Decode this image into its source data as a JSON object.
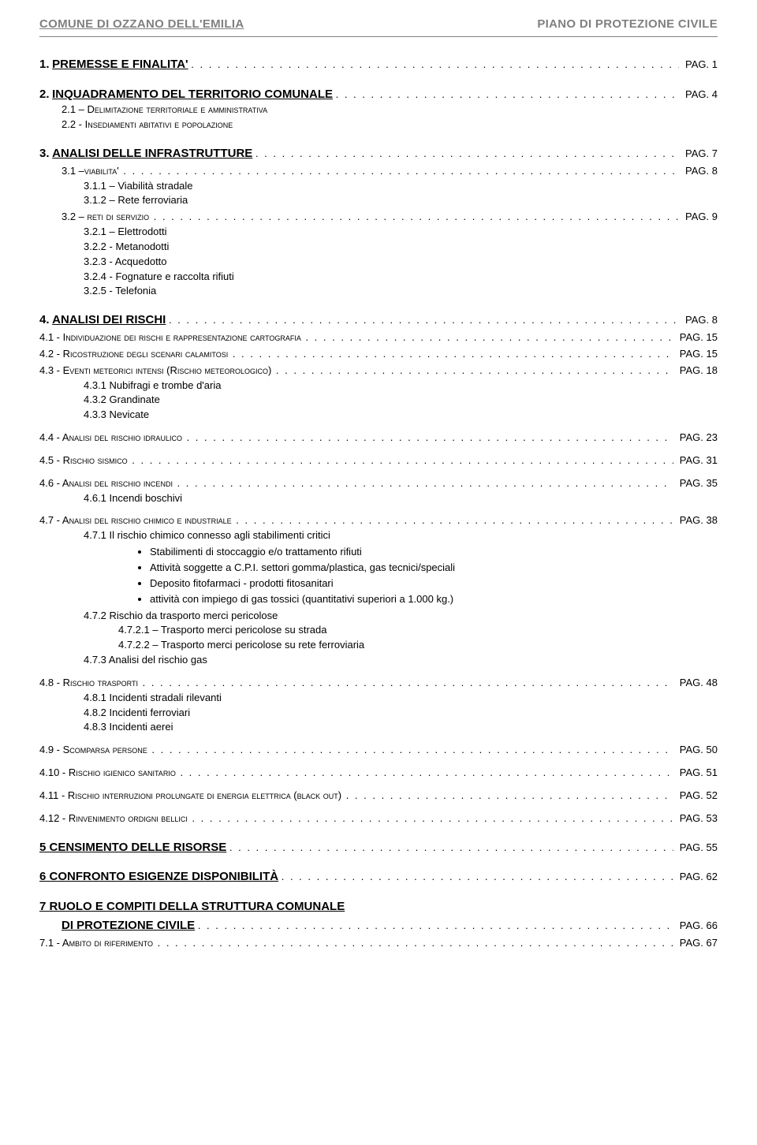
{
  "header": {
    "left": "COMUNE DI OZZANO DELL'EMILIA",
    "right": "PIANO DI PROTEZIONE CIVILE"
  },
  "page_prefix": "PAG.",
  "sections": {
    "s1": {
      "num": "1.",
      "title": "PREMESSE E FINALITA'",
      "page": "1"
    },
    "s2": {
      "num": "2.",
      "title": "INQUADRAMENTO DEL TERRITORIO COMUNALE",
      "page": "4",
      "s21": "2.1 – Delimitazione territoriale e amministrativa",
      "s22": "2.2 - Insediamenti abitativi e popolazione"
    },
    "s3": {
      "num": "3.",
      "title": "ANALISI DELLE INFRASTRUTTURE",
      "page": "7",
      "s31": {
        "label": "3.1 –viabilita'",
        "page": "8",
        "s311": "3.1.1 – Viabilità stradale",
        "s312": "3.1.2 – Rete ferroviaria"
      },
      "s32": {
        "label": "3.2 – reti di servizio",
        "page": "9",
        "s321": "3.2.1 – Elettrodotti",
        "s322": "3.2.2 - Metanodotti",
        "s323": "3.2.3 - Acquedotto",
        "s324": "3.2.4 - Fognature e raccolta rifiuti",
        "s325": "3.2.5 - Telefonia"
      }
    },
    "s4": {
      "num": "4.",
      "title": "ANALISI DEI RISCHI",
      "page": "8",
      "s41": {
        "label": "4.1 - Individuazione dei rischi e rappresentazione cartografia",
        "page": "15"
      },
      "s42": {
        "label": "4.2 - Ricostruzione degli scenari calamitosi",
        "page": "15"
      },
      "s43": {
        "label": "4.3 - Eventi meteorici intensi (Rischio meteorologico)",
        "page": "18",
        "s431": "4.3.1 Nubifragi e trombe d'aria",
        "s432": "4.3.2 Grandinate",
        "s433": "4.3.3 Nevicate"
      },
      "s44": {
        "label": "4.4 - Analisi del rischio idraulico",
        "page": "23"
      },
      "s45": {
        "label": "4.5 - Rischio sismico",
        "page": "31"
      },
      "s46": {
        "label": "4.6 - Analisi del rischio incendi",
        "page": "35",
        "s461": "4.6.1 Incendi boschivi"
      },
      "s47": {
        "label": "4.7 - Analisi del rischio chimico e industriale",
        "page": "38",
        "s471": "4.7.1 Il rischio chimico connesso agli stabilimenti critici",
        "bullets": {
          "b1": "Stabilimenti di stoccaggio e/o trattamento rifiuti",
          "b2": "Attività soggette a C.P.I. settori gomma/plastica, gas tecnici/speciali",
          "b3": "Deposito fitofarmaci -  prodotti fitosanitari",
          "b4": "attività con impiego di gas tossici (quantitativi superiori a 1.000 kg.)"
        },
        "s472": "4.7.2 Rischio da trasporto merci pericolose",
        "s4721": "4.7.2.1 – Trasporto merci pericolose su strada",
        "s4722": "4.7.2.2 – Trasporto merci pericolose su rete ferroviaria",
        "s473": "4.7.3 Analisi del rischio gas"
      },
      "s48": {
        "label": "4.8 - Rischio trasporti",
        "page": "48",
        "s481": "4.8.1 Incidenti stradali rilevanti",
        "s482": "4.8.2 Incidenti ferroviari",
        "s483": "4.8.3 Incidenti aerei"
      },
      "s49": {
        "label": "4.9 - Scomparsa persone",
        "page": "50"
      },
      "s410": {
        "label": "4.10 - Rischio igienico sanitario",
        "page": "51"
      },
      "s411": {
        "label": "4.11 - Rischio interruzioni prolungate di energia elettrica (black out)",
        "page": "52"
      },
      "s412": {
        "label": "4.12 - Rinvenimento ordigni bellici",
        "page": "53"
      }
    },
    "s5": {
      "title": "5 CENSIMENTO DELLE RISORSE",
      "page": "55"
    },
    "s6": {
      "title": "6 CONFRONTO ESIGENZE DISPONIBILITÀ",
      "page": "62"
    },
    "s7": {
      "title_a": "7 RUOLO E COMPITI DELLA STRUTTURA COMUNALE",
      "title_b": "DI PROTEZIONE CIVILE",
      "page": "66",
      "s71": {
        "label": "7.1 - Ambito di riferimento",
        "page": "67"
      }
    }
  }
}
